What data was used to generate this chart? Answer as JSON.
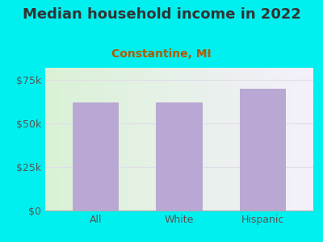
{
  "title": "Median household income in 2022",
  "subtitle": "Constantine, MI",
  "categories": [
    "All",
    "White",
    "Hispanic"
  ],
  "values": [
    62000,
    62000,
    70000
  ],
  "bar_color": "#b9a8d3",
  "background_color": "#00f0f0",
  "title_color": "#333333",
  "subtitle_color": "#b05a00",
  "ylabel_ticks": [
    0,
    25000,
    50000,
    75000
  ],
  "ylabel_labels": [
    "$0",
    "$25k",
    "$50k",
    "$75k"
  ],
  "ylim": [
    0,
    82000
  ],
  "title_fontsize": 13,
  "subtitle_fontsize": 10,
  "tick_fontsize": 9,
  "grad_color_left": "#daf2d6",
  "grad_color_right": "#f4f0fc",
  "grid_color": "#e0dde8"
}
